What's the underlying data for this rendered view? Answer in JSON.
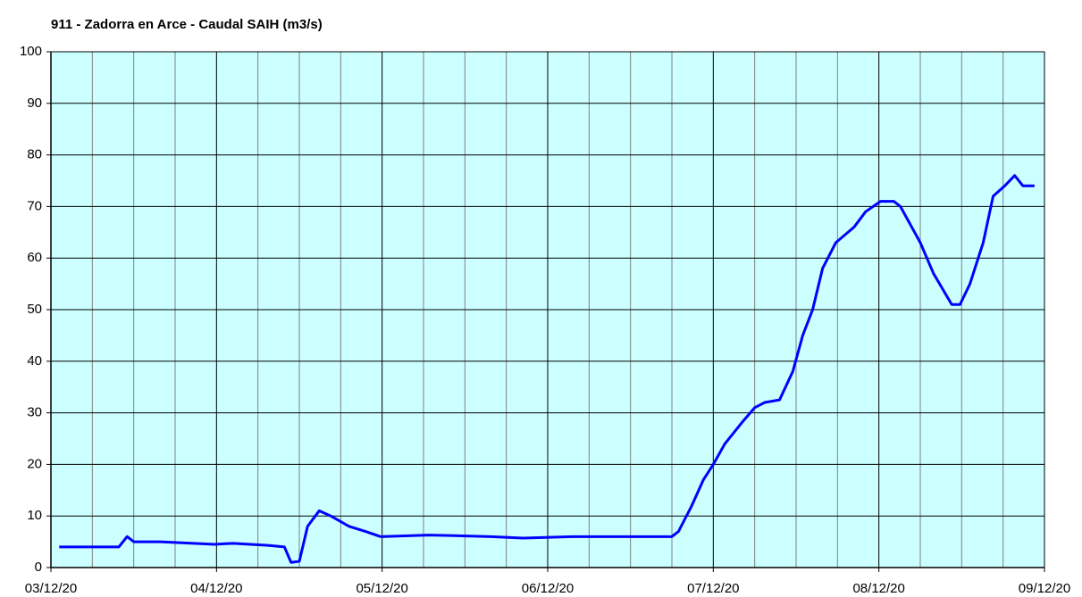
{
  "chart_data": {
    "type": "line",
    "title": "911 - Zadorra en Arce - Caudal SAIH (m3/s)",
    "x": [
      0.05,
      0.41,
      0.46,
      0.5,
      0.66,
      0.99,
      1.1,
      1.31,
      1.41,
      1.45,
      1.5,
      1.55,
      1.62,
      1.69,
      1.8,
      1.9,
      1.99,
      2.28,
      2.66,
      2.85,
      3.15,
      3.75,
      3.79,
      3.87,
      3.94,
      4.0,
      4.07,
      4.17,
      4.25,
      4.31,
      4.4,
      4.48,
      4.54,
      4.6,
      4.66,
      4.74,
      4.85,
      4.92,
      5.01,
      5.09,
      5.13,
      5.25,
      5.33,
      5.44,
      5.49,
      5.55,
      5.63,
      5.69,
      5.76,
      5.82,
      5.87,
      5.94
    ],
    "series": [
      {
        "name": "Caudal",
        "color": "#0000ff",
        "values": [
          4,
          4,
          6,
          5,
          5,
          4.5,
          4.7,
          4.3,
          4,
          1,
          1.2,
          8,
          11,
          10,
          8,
          7,
          6,
          6.3,
          6,
          5.7,
          6,
          6,
          7,
          12,
          17,
          20,
          24,
          28,
          31,
          32,
          32.5,
          38,
          45,
          50,
          58,
          63,
          66,
          69,
          71,
          71,
          70,
          63,
          57,
          51,
          51,
          55,
          63,
          72,
          74,
          76,
          74,
          74
        ]
      }
    ],
    "xlim": [
      0,
      6
    ],
    "xticks": [
      {
        "value": 0,
        "label": "03/12/20"
      },
      {
        "value": 1,
        "label": "04/12/20"
      },
      {
        "value": 2,
        "label": "05/12/20"
      },
      {
        "value": 3,
        "label": "06/12/20"
      },
      {
        "value": 4,
        "label": "07/12/20"
      },
      {
        "value": 5,
        "label": "08/12/20"
      },
      {
        "value": 6,
        "label": "09/12/20"
      }
    ],
    "ylim": [
      0,
      100
    ],
    "yticks": [
      0,
      10,
      20,
      30,
      40,
      50,
      60,
      70,
      80,
      90,
      100
    ],
    "grid": true,
    "background": "#ccffff"
  }
}
